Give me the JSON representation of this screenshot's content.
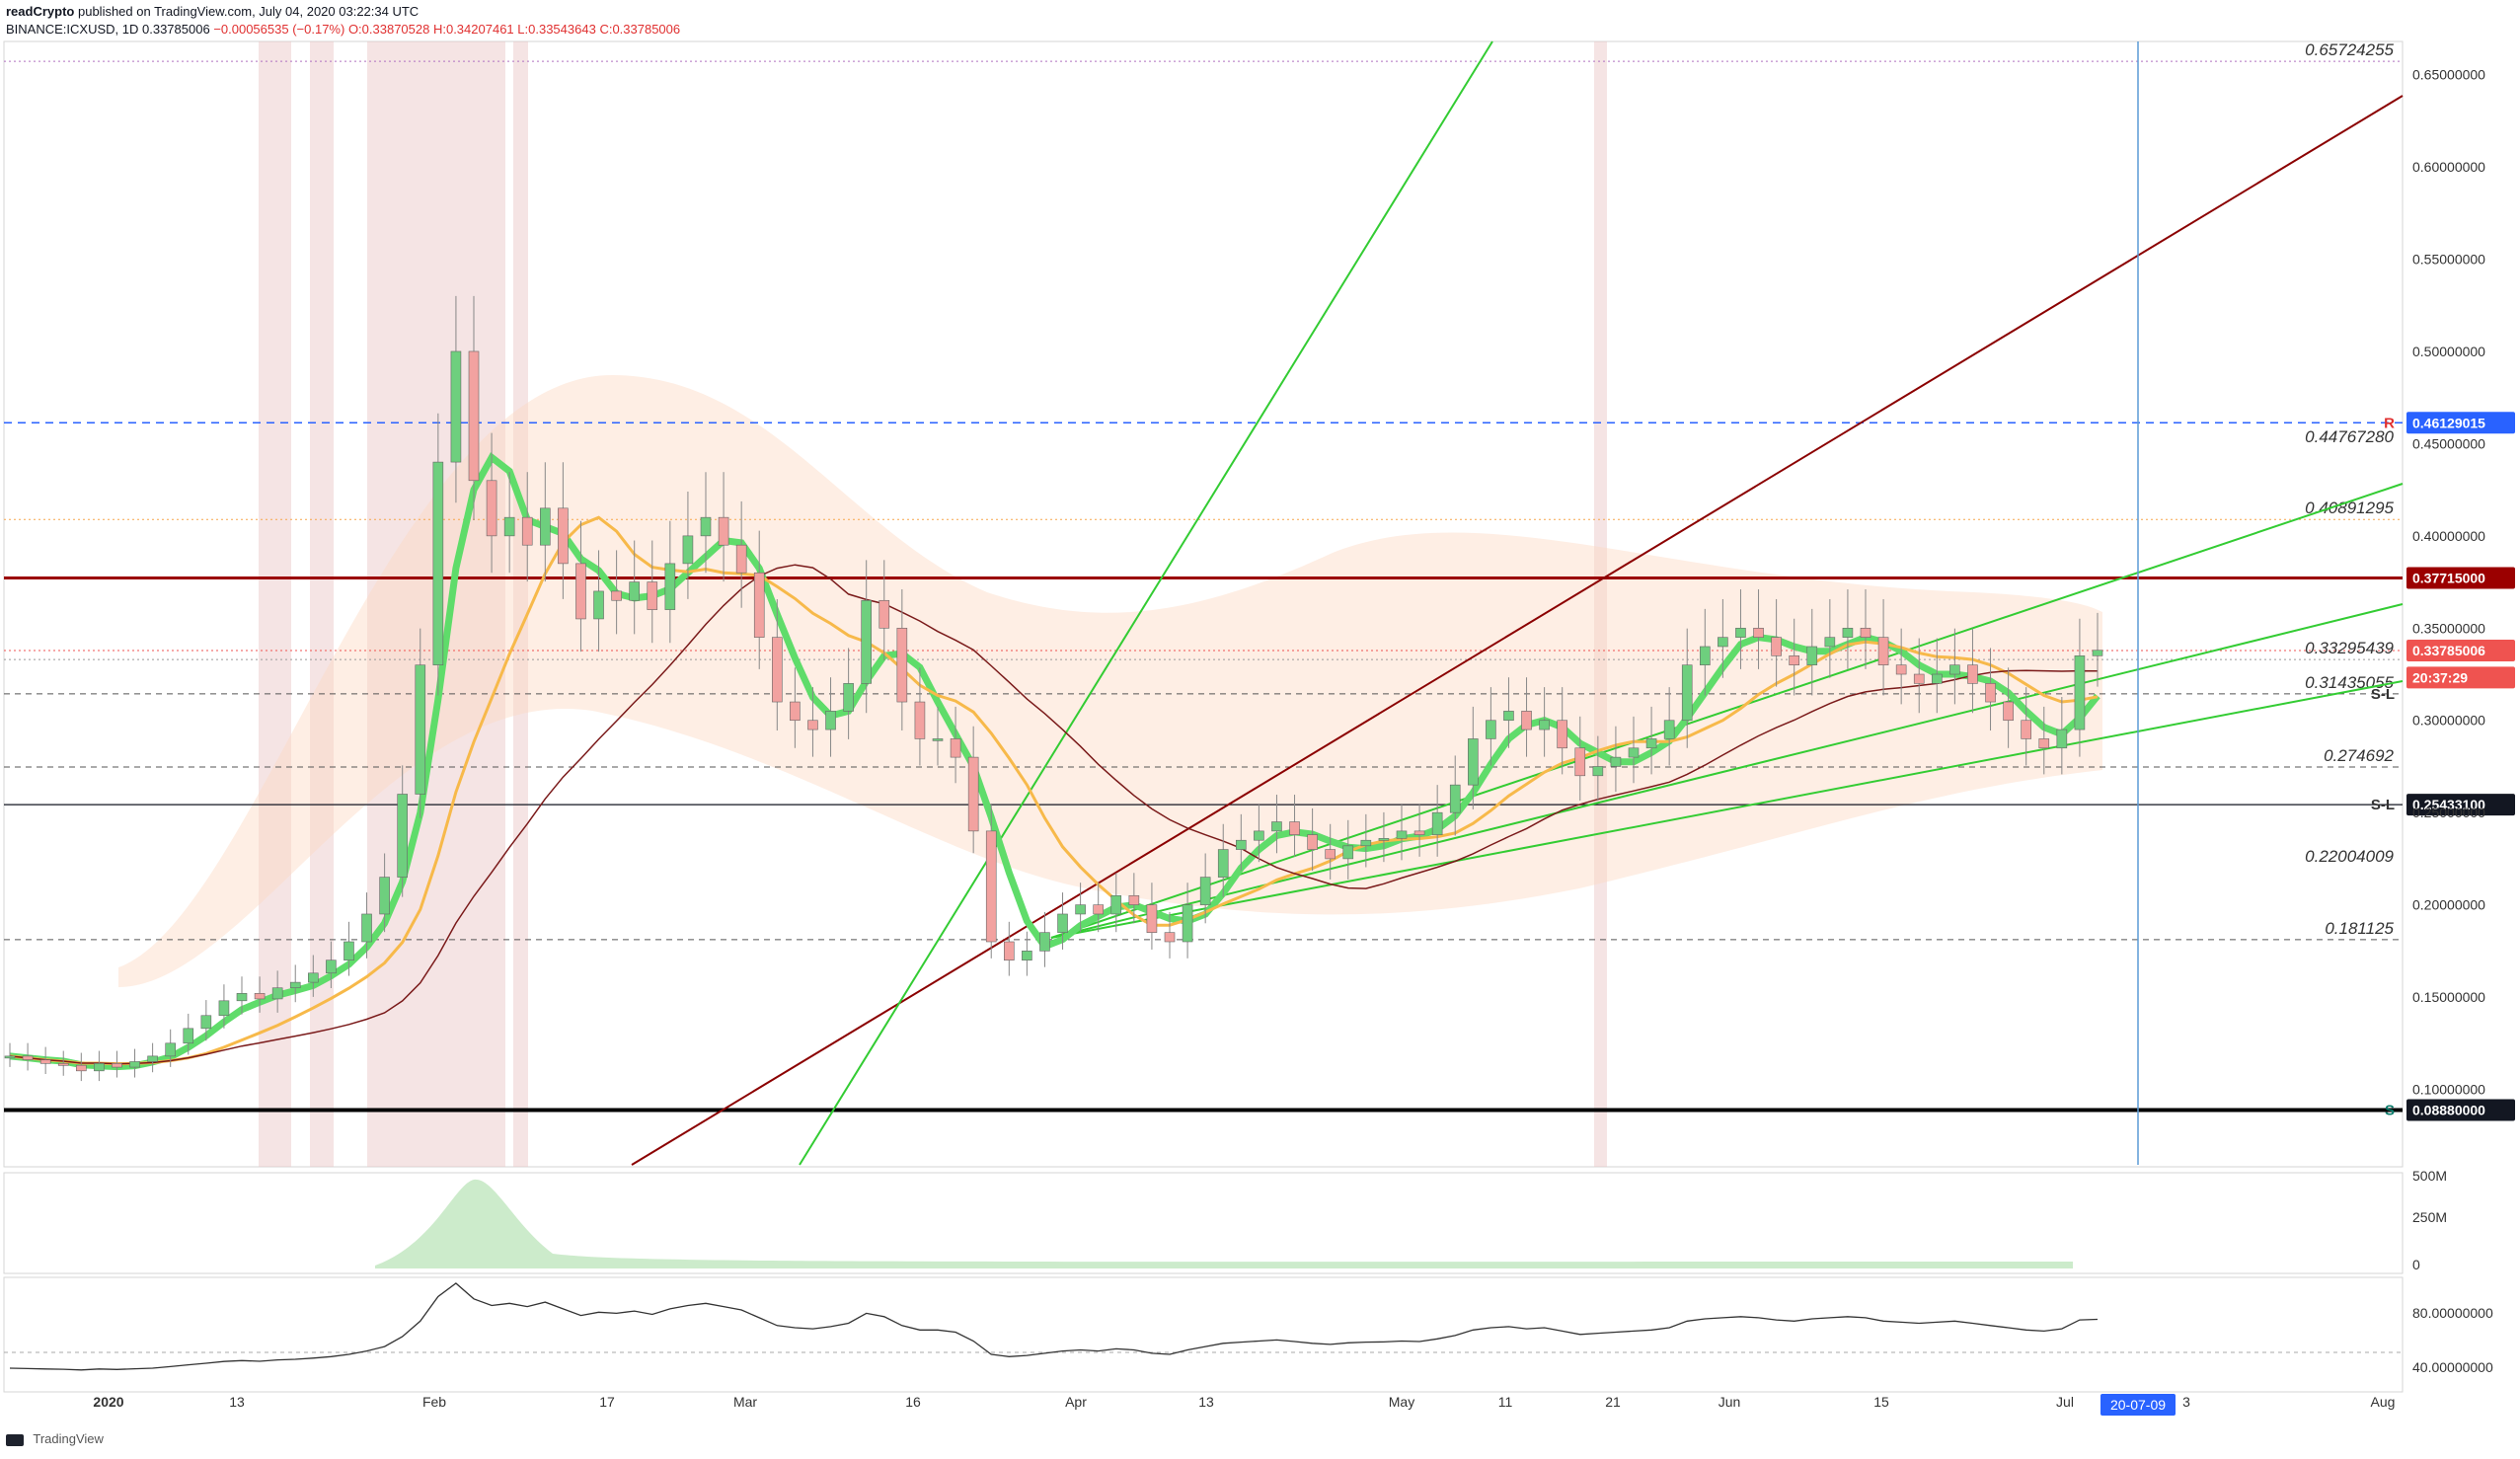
{
  "header": {
    "author": "readCrypto",
    "published": "published on TradingView.com, July 04, 2020 03:22:34 UTC",
    "symbol": "BINANCE:ICXUSD, 1D",
    "last": "0.33785006",
    "change": "−0.00056535 (−0.17%)",
    "o": "O:0.33870528",
    "h": "H:0.34207461",
    "l": "L:0.33543643",
    "c": "C:0.33785006"
  },
  "footer": {
    "brand": "TradingView"
  },
  "chart_data": {
    "type": "line",
    "title": "",
    "price_axis": {
      "ticks": [
        0.65,
        0.6,
        0.55,
        0.5,
        0.45,
        0.4,
        0.35,
        0.3,
        0.25,
        0.2,
        0.15,
        0.1
      ],
      "tick_labels": [
        "0.65000000",
        "0.60000000",
        "0.55000000",
        "0.50000000",
        "0.45000000",
        "0.40000000",
        "0.35000000",
        "0.30000000",
        "0.25000000",
        "0.20000000",
        "0.15000000",
        "0.10000000"
      ],
      "ylim": [
        0.058,
        0.668
      ]
    },
    "time_axis": {
      "labels": [
        "2020",
        "13",
        "Feb",
        "17",
        "Mar",
        "16",
        "Apr",
        "13",
        "May",
        "11",
        "21",
        "Jun",
        "15",
        "Jul",
        "3",
        "Aug"
      ],
      "cursor_label": "20-07-09"
    },
    "levels": [
      {
        "label": "0.65724255",
        "value": 0.65724,
        "kind": "dotted-purple"
      },
      {
        "label": "0.46129015",
        "value": 0.46129,
        "kind": "dashed-blue",
        "tag": "R",
        "boxed": true,
        "color": "#2962ff"
      },
      {
        "label": "0.44767280",
        "value": 0.44767,
        "kind": "none"
      },
      {
        "label": "0.40891295",
        "value": 0.40891,
        "kind": "dotted-orange"
      },
      {
        "label": "0.37715000",
        "value": 0.37715,
        "kind": "solid-darkred",
        "boxed": true,
        "color": "#9b0000"
      },
      {
        "label": "0.33785006",
        "value": 0.33785,
        "kind": "dotted-red",
        "boxed": true,
        "color": "#ef5350"
      },
      {
        "label": "20:37:29",
        "value": 0.3232,
        "kind": "none",
        "boxed": true,
        "color": "#ef5350"
      },
      {
        "label": "0.33295439",
        "value": 0.33295,
        "kind": "dotted"
      },
      {
        "label": "0.31435055",
        "value": 0.31435,
        "kind": "dashed-gray",
        "tag": "S-L"
      },
      {
        "label": "0.274692",
        "value": 0.27469,
        "kind": "dashed-gray"
      },
      {
        "label": "0.25433100",
        "value": 0.25433,
        "kind": "solid-black",
        "tag": "S-L",
        "boxed": true,
        "color": "#131722"
      },
      {
        "label": "0.22004009",
        "value": 0.22004,
        "kind": "none"
      },
      {
        "label": "0.181125",
        "value": 0.181125,
        "kind": "dashed-gray"
      },
      {
        "label": "0.08880000",
        "value": 0.0888,
        "kind": "solid-black-thick",
        "tag": "S",
        "boxed": true,
        "color": "#131722"
      }
    ],
    "volume_axis": {
      "tick_labels": [
        "500M",
        "250M",
        "0"
      ]
    },
    "oscillator_axis": {
      "tick_labels": [
        "80.00000000",
        "40.00000000"
      ]
    },
    "series": [
      {
        "name": "",
        "type": "candlestick",
        "x": "days",
        "values": [
          0.118,
          0.116,
          0.114,
          0.113,
          0.11,
          0.114,
          0.112,
          0.115,
          0.118,
          0.125,
          0.133,
          0.14,
          0.148,
          0.152,
          0.149,
          0.155,
          0.158,
          0.163,
          0.17,
          0.18,
          0.195,
          0.215,
          0.26,
          0.33,
          0.44,
          0.5,
          0.43,
          0.4,
          0.41,
          0.395,
          0.415,
          0.385,
          0.355,
          0.37,
          0.365,
          0.375,
          0.36,
          0.385,
          0.4,
          0.41,
          0.395,
          0.38,
          0.345,
          0.31,
          0.3,
          0.295,
          0.305,
          0.32,
          0.365,
          0.35,
          0.31,
          0.29,
          0.29,
          0.28,
          0.24,
          0.18,
          0.17,
          0.175,
          0.185,
          0.195,
          0.2,
          0.195,
          0.205,
          0.2,
          0.185,
          0.18,
          0.2,
          0.215,
          0.23,
          0.235,
          0.24,
          0.245,
          0.238,
          0.23,
          0.225,
          0.232,
          0.235,
          0.236,
          0.24,
          0.238,
          0.25,
          0.265,
          0.29,
          0.3,
          0.305,
          0.295,
          0.3,
          0.285,
          0.27,
          0.275,
          0.28,
          0.285,
          0.29,
          0.3,
          0.33,
          0.34,
          0.345,
          0.35,
          0.345,
          0.335,
          0.33,
          0.34,
          0.345,
          0.35,
          0.345,
          0.33,
          0.325,
          0.32,
          0.325,
          0.33,
          0.32,
          0.31,
          0.3,
          0.29,
          0.285,
          0.295,
          0.335,
          0.338
        ]
      }
    ]
  }
}
